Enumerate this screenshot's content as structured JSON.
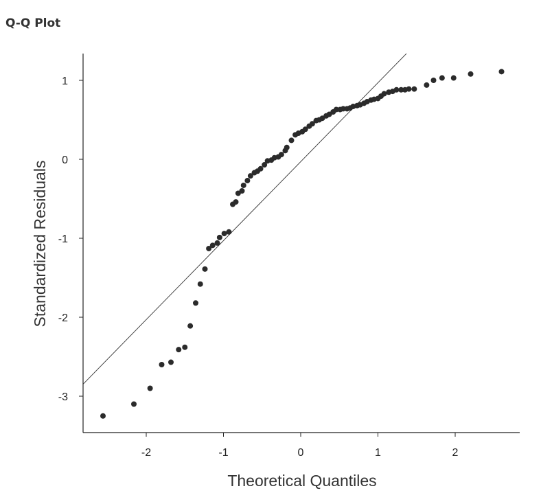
{
  "chart_data": {
    "type": "scatter",
    "title": "Q-Q Plot",
    "xlabel": "Theoretical Quantiles",
    "ylabel": "Standardized Residuals",
    "xlim": [
      -2.83,
      2.83
    ],
    "ylim": [
      -3.46,
      1.34
    ],
    "xticks": [
      -2,
      -1,
      0,
      1,
      2
    ],
    "yticks": [
      -3,
      -2,
      -1,
      0,
      1
    ],
    "grid": false,
    "reference_line": {
      "slope": 1.0,
      "intercept": -0.03
    },
    "point_color": "#2b2b2b",
    "points": [
      [
        -2.56,
        -3.25
      ],
      [
        -2.16,
        -3.1
      ],
      [
        -1.95,
        -2.9
      ],
      [
        -1.8,
        -2.6
      ],
      [
        -1.68,
        -2.57
      ],
      [
        -1.58,
        -2.41
      ],
      [
        -1.5,
        -2.38
      ],
      [
        -1.43,
        -2.11
      ],
      [
        -1.36,
        -1.82
      ],
      [
        -1.3,
        -1.58
      ],
      [
        -1.24,
        -1.39
      ],
      [
        -1.19,
        -1.13
      ],
      [
        -1.14,
        -1.09
      ],
      [
        -1.08,
        -1.06
      ],
      [
        -1.05,
        -0.99
      ],
      [
        -0.99,
        -0.94
      ],
      [
        -0.93,
        -0.92
      ],
      [
        -0.88,
        -0.57
      ],
      [
        -0.84,
        -0.54
      ],
      [
        -0.81,
        -0.43
      ],
      [
        -0.76,
        -0.4
      ],
      [
        -0.74,
        -0.33
      ],
      [
        -0.69,
        -0.27
      ],
      [
        -0.65,
        -0.21
      ],
      [
        -0.6,
        -0.17
      ],
      [
        -0.56,
        -0.15
      ],
      [
        -0.52,
        -0.12
      ],
      [
        -0.47,
        -0.07
      ],
      [
        -0.43,
        -0.02
      ],
      [
        -0.38,
        -0.01
      ],
      [
        -0.34,
        0.02
      ],
      [
        -0.29,
        0.03
      ],
      [
        -0.25,
        0.06
      ],
      [
        -0.2,
        0.11
      ],
      [
        -0.18,
        0.15
      ],
      [
        -0.12,
        0.24
      ],
      [
        -0.07,
        0.31
      ],
      [
        -0.03,
        0.33
      ],
      [
        0.02,
        0.35
      ],
      [
        0.06,
        0.38
      ],
      [
        0.11,
        0.42
      ],
      [
        0.15,
        0.45
      ],
      [
        0.2,
        0.49
      ],
      [
        0.24,
        0.5
      ],
      [
        0.28,
        0.52
      ],
      [
        0.33,
        0.55
      ],
      [
        0.37,
        0.57
      ],
      [
        0.42,
        0.6
      ],
      [
        0.46,
        0.63
      ],
      [
        0.51,
        0.63
      ],
      [
        0.55,
        0.64
      ],
      [
        0.6,
        0.64
      ],
      [
        0.64,
        0.65
      ],
      [
        0.68,
        0.67
      ],
      [
        0.73,
        0.68
      ],
      [
        0.77,
        0.69
      ],
      [
        0.82,
        0.71
      ],
      [
        0.86,
        0.73
      ],
      [
        0.91,
        0.75
      ],
      [
        0.95,
        0.76
      ],
      [
        1.0,
        0.77
      ],
      [
        1.04,
        0.8
      ],
      [
        1.08,
        0.83
      ],
      [
        1.14,
        0.85
      ],
      [
        1.19,
        0.86
      ],
      [
        1.24,
        0.88
      ],
      [
        1.3,
        0.88
      ],
      [
        1.35,
        0.88
      ],
      [
        1.4,
        0.89
      ],
      [
        1.47,
        0.89
      ],
      [
        1.63,
        0.94
      ],
      [
        1.72,
        1.0
      ],
      [
        1.83,
        1.03
      ],
      [
        1.98,
        1.03
      ],
      [
        2.2,
        1.08
      ],
      [
        2.6,
        1.11
      ]
    ]
  }
}
